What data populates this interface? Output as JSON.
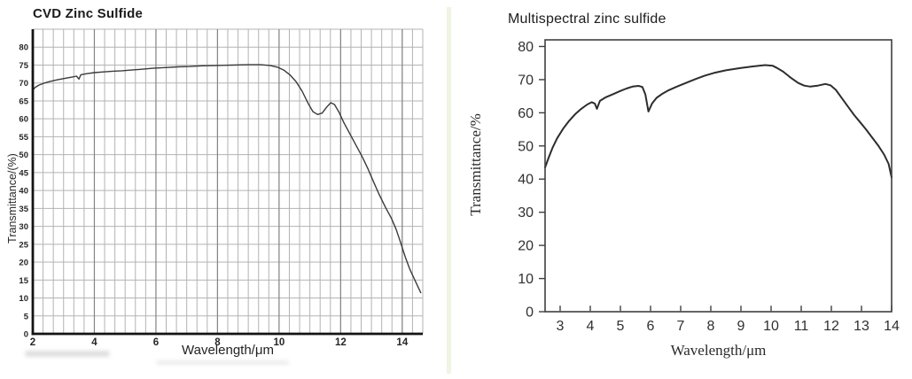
{
  "page": {
    "background": "#ffffff"
  },
  "chart_data": [
    {
      "id": "cvd",
      "type": "line",
      "title": "CVD Zinc Sulfide",
      "xlabel": "Wavelength/μm",
      "ylabel": "Transmittance/(%)",
      "xlim": [
        2,
        14.667
      ],
      "ylim": [
        0,
        85
      ],
      "x_ticks": [
        2,
        4,
        6,
        8,
        10,
        12,
        14
      ],
      "y_ticks": [
        0,
        5,
        10,
        15,
        20,
        25,
        30,
        35,
        40,
        45,
        50,
        55,
        60,
        65,
        70,
        75,
        80
      ],
      "legend": "none",
      "grid": {
        "x_minor_step": 0.33333,
        "y_step": 5,
        "minor_color": "#b3b3b3",
        "major_color": "#858585"
      },
      "colors": {
        "line": "#3a3a3a",
        "axis": "#141414",
        "text": "#262626"
      },
      "points": [
        [
          2,
          68
        ],
        [
          2.08,
          68.8
        ],
        [
          2.2,
          69.4
        ],
        [
          2.35,
          69.9
        ],
        [
          2.55,
          70.4
        ],
        [
          2.8,
          70.9
        ],
        [
          3.05,
          71.3
        ],
        [
          3.25,
          71.6
        ],
        [
          3.42,
          71.9
        ],
        [
          3.5,
          71.1
        ],
        [
          3.56,
          72.3
        ],
        [
          3.75,
          72.6
        ],
        [
          4,
          72.9
        ],
        [
          4.3,
          73.1
        ],
        [
          4.6,
          73.3
        ],
        [
          4.9,
          73.4
        ],
        [
          5.2,
          73.6
        ],
        [
          5.5,
          73.8
        ],
        [
          5.9,
          74.1
        ],
        [
          6.3,
          74.3
        ],
        [
          6.7,
          74.5
        ],
        [
          7.1,
          74.6
        ],
        [
          7.5,
          74.8
        ],
        [
          8,
          74.9
        ],
        [
          8.5,
          75
        ],
        [
          9,
          75.1
        ],
        [
          9.4,
          75.1
        ],
        [
          9.7,
          74.9
        ],
        [
          9.95,
          74.4
        ],
        [
          10.15,
          73.6
        ],
        [
          10.35,
          72.3
        ],
        [
          10.55,
          70.4
        ],
        [
          10.75,
          67.7
        ],
        [
          10.95,
          64.2
        ],
        [
          11.1,
          62
        ],
        [
          11.25,
          61.2
        ],
        [
          11.4,
          61.6
        ],
        [
          11.55,
          63.3
        ],
        [
          11.68,
          64.5
        ],
        [
          11.8,
          64
        ],
        [
          11.95,
          61.8
        ],
        [
          12.1,
          59
        ],
        [
          12.3,
          55.8
        ],
        [
          12.5,
          52.6
        ],
        [
          12.7,
          49.4
        ],
        [
          12.9,
          45.8
        ],
        [
          13.05,
          42.8
        ],
        [
          13.25,
          38.9
        ],
        [
          13.45,
          35.4
        ],
        [
          13.65,
          32.2
        ],
        [
          13.8,
          29.2
        ],
        [
          13.95,
          25.4
        ],
        [
          14.1,
          21.4
        ],
        [
          14.25,
          18
        ],
        [
          14.4,
          15.2
        ],
        [
          14.52,
          13
        ],
        [
          14.6,
          11.5
        ]
      ]
    },
    {
      "id": "multi",
      "type": "line",
      "title": "Multispectral zinc sulfide",
      "xlabel": "Wavelength/μm",
      "ylabel": "Transmittance/%",
      "xlim": [
        2.5,
        14
      ],
      "ylim": [
        0,
        82
      ],
      "x_ticks": [
        3,
        4,
        5,
        6,
        7,
        8,
        9,
        10,
        11,
        12,
        13,
        14
      ],
      "y_ticks": [
        0,
        10,
        20,
        30,
        40,
        50,
        60,
        70,
        80
      ],
      "legend": "none",
      "grid": null,
      "colors": {
        "line": "#2d2d2d",
        "axis": "#3f3f3f",
        "text": "#303030"
      },
      "points": [
        [
          2.5,
          43.5
        ],
        [
          2.62,
          46.5
        ],
        [
          2.75,
          49.5
        ],
        [
          2.9,
          52.3
        ],
        [
          3.1,
          55.2
        ],
        [
          3.3,
          57.6
        ],
        [
          3.5,
          59.6
        ],
        [
          3.7,
          61.2
        ],
        [
          3.9,
          62.5
        ],
        [
          4.05,
          63.2
        ],
        [
          4.15,
          62.8
        ],
        [
          4.22,
          61.2
        ],
        [
          4.32,
          63.6
        ],
        [
          4.5,
          64.6
        ],
        [
          4.75,
          65.6
        ],
        [
          5,
          66.6
        ],
        [
          5.2,
          67.3
        ],
        [
          5.4,
          67.9
        ],
        [
          5.6,
          68.1
        ],
        [
          5.73,
          67.8
        ],
        [
          5.83,
          65.5
        ],
        [
          5.93,
          60.4
        ],
        [
          6.05,
          62.8
        ],
        [
          6.2,
          64.5
        ],
        [
          6.4,
          65.8
        ],
        [
          6.6,
          66.8
        ],
        [
          6.9,
          68
        ],
        [
          7.2,
          69.1
        ],
        [
          7.5,
          70.2
        ],
        [
          7.8,
          71.2
        ],
        [
          8.1,
          72
        ],
        [
          8.5,
          72.8
        ],
        [
          9,
          73.5
        ],
        [
          9.4,
          74
        ],
        [
          9.8,
          74.4
        ],
        [
          10.05,
          74.2
        ],
        [
          10.2,
          73.5
        ],
        [
          10.4,
          72.4
        ],
        [
          10.65,
          70.6
        ],
        [
          10.9,
          69
        ],
        [
          11.1,
          68.2
        ],
        [
          11.3,
          67.9
        ],
        [
          11.55,
          68.2
        ],
        [
          11.8,
          68.7
        ],
        [
          11.97,
          68.3
        ],
        [
          12.15,
          66.9
        ],
        [
          12.35,
          64.4
        ],
        [
          12.55,
          61.9
        ],
        [
          12.75,
          59.4
        ],
        [
          12.95,
          57.2
        ],
        [
          13.15,
          55
        ],
        [
          13.35,
          52.6
        ],
        [
          13.55,
          50.2
        ],
        [
          13.75,
          47.4
        ],
        [
          13.9,
          44.6
        ],
        [
          14,
          40.5
        ]
      ]
    }
  ]
}
